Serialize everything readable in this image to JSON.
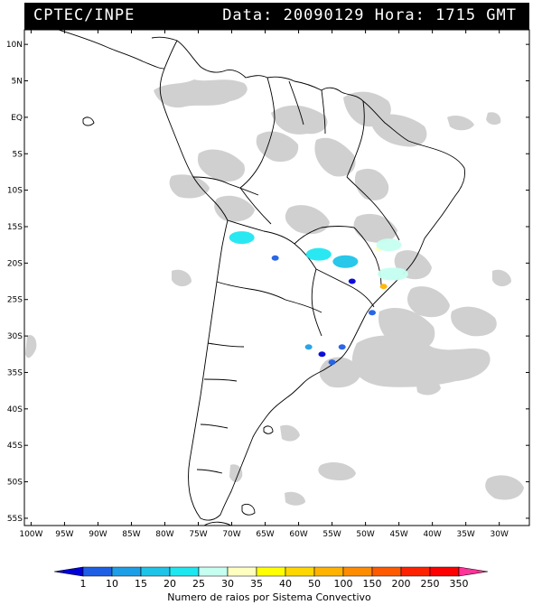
{
  "header": {
    "organization": "CPTEC/INPE",
    "timestamp": "Data: 20090129 Hora: 1715 GMT"
  },
  "axes": {
    "lat_range": [
      -56,
      12
    ],
    "lon_range": [
      -101,
      -25.5
    ],
    "lat_ticks": [
      {
        "value": 10,
        "label": "10N"
      },
      {
        "value": 5,
        "label": "5N"
      },
      {
        "value": 0,
        "label": "EQ"
      },
      {
        "value": -5,
        "label": "5S"
      },
      {
        "value": -10,
        "label": "10S"
      },
      {
        "value": -15,
        "label": "15S"
      },
      {
        "value": -20,
        "label": "20S"
      },
      {
        "value": -25,
        "label": "25S"
      },
      {
        "value": -30,
        "label": "30S"
      },
      {
        "value": -35,
        "label": "35S"
      },
      {
        "value": -40,
        "label": "40S"
      },
      {
        "value": -45,
        "label": "45S"
      },
      {
        "value": -50,
        "label": "50S"
      },
      {
        "value": -55,
        "label": "55S"
      }
    ],
    "lon_ticks": [
      {
        "value": -100,
        "label": "100W"
      },
      {
        "value": -95,
        "label": "95W"
      },
      {
        "value": -90,
        "label": "90W"
      },
      {
        "value": -85,
        "label": "85W"
      },
      {
        "value": -80,
        "label": "80W"
      },
      {
        "value": -75,
        "label": "75W"
      },
      {
        "value": -70,
        "label": "70W"
      },
      {
        "value": -65,
        "label": "65W"
      },
      {
        "value": -60,
        "label": "60W"
      },
      {
        "value": -55,
        "label": "55W"
      },
      {
        "value": -50,
        "label": "50W"
      },
      {
        "value": -45,
        "label": "45W"
      },
      {
        "value": -40,
        "label": "40W"
      },
      {
        "value": -35,
        "label": "35W"
      },
      {
        "value": -30,
        "label": "30W"
      }
    ]
  },
  "colorbar": {
    "title": "Numero de raios por Sistema Convectivo",
    "bins": [
      {
        "color": "#0000d8"
      },
      {
        "color": "#1f5fe6"
      },
      {
        "color": "#1d9fe8"
      },
      {
        "color": "#1ec4e8"
      },
      {
        "color": "#1ee7f0"
      },
      {
        "color": "#c6fff0"
      },
      {
        "color": "#ffffc0"
      },
      {
        "color": "#ffff00"
      },
      {
        "color": "#ffd700"
      },
      {
        "color": "#ffb300"
      },
      {
        "color": "#ff8c00"
      },
      {
        "color": "#ff5a00"
      },
      {
        "color": "#ff2200"
      },
      {
        "color": "#ff0000"
      },
      {
        "color": "#ff3399"
      }
    ],
    "labels": [
      "1",
      "10",
      "15",
      "20",
      "25",
      "30",
      "35",
      "40",
      "50",
      "100",
      "150",
      "200",
      "250",
      "350"
    ]
  },
  "lightning_systems": [
    {
      "lon": -68.5,
      "lat": -16.5,
      "count_bin": 4
    },
    {
      "lon": -57.0,
      "lat": -18.8,
      "count_bin": 4
    },
    {
      "lon": -53.0,
      "lat": -19.8,
      "count_bin": 3
    },
    {
      "lon": -63.5,
      "lat": -19.3,
      "count_bin": 1
    },
    {
      "lon": -47.3,
      "lat": -23.2,
      "count_bin": 9
    },
    {
      "lon": -46.3,
      "lat": -21.5,
      "count_bin": 5
    },
    {
      "lon": -48.0,
      "lat": -18.0,
      "count_bin": 6
    },
    {
      "lon": -46.5,
      "lat": -17.5,
      "count_bin": 5
    },
    {
      "lon": -45.5,
      "lat": -21.5,
      "count_bin": 5
    },
    {
      "lon": -52.0,
      "lat": -22.5,
      "count_bin": 0
    },
    {
      "lon": -49.0,
      "lat": -26.8,
      "count_bin": 1
    },
    {
      "lon": -58.5,
      "lat": -31.5,
      "count_bin": 2
    },
    {
      "lon": -56.5,
      "lat": -32.5,
      "count_bin": 0
    },
    {
      "lon": -55.0,
      "lat": -33.6,
      "count_bin": 1
    },
    {
      "lon": -53.5,
      "lat": -31.5,
      "count_bin": 1
    }
  ]
}
